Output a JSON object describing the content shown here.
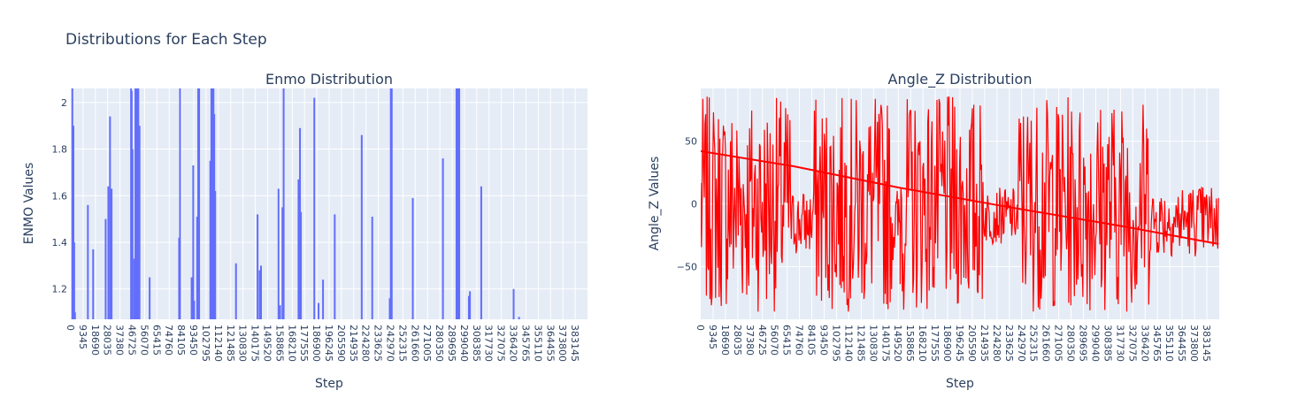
{
  "title": "Distributions for Each Step",
  "colors": {
    "plot_bg": "#e5ecf6",
    "grid": "#ffffff",
    "text": "#2a3f5f",
    "enmo": "#636efa",
    "angle": "#ff0000"
  },
  "chart_data": [
    {
      "type": "bar",
      "title": "Enmo Distribution",
      "xlabel": "Step",
      "ylabel": "ENMO Values",
      "xlim": [
        0,
        392500
      ],
      "ylim": [
        1.07,
        2.06
      ],
      "xticks": [
        "0",
        "9345",
        "18690",
        "28035",
        "37380",
        "46725",
        "56070",
        "65415",
        "74760",
        "84105",
        "93450",
        "102795",
        "112140",
        "121485",
        "130830",
        "140175",
        "149520",
        "158865",
        "168210",
        "177555",
        "186900",
        "196245",
        "205590",
        "214935",
        "224280",
        "233625",
        "242970",
        "252315",
        "261660",
        "271005",
        "280350",
        "289695",
        "299040",
        "308385",
        "317730",
        "327075",
        "336420",
        "345765",
        "355110",
        "364455",
        "373800",
        "383145"
      ],
      "yticks": [
        1.2,
        1.4,
        1.6,
        1.8,
        2
      ],
      "ytick_labels": [
        "1.2",
        "1.4",
        "1.6",
        "1.8",
        "2"
      ],
      "bars": [
        {
          "x": 1200,
          "y": 2.06
        },
        {
          "x": 2000,
          "y": 1.9
        },
        {
          "x": 2600,
          "y": 1.4
        },
        {
          "x": 3200,
          "y": 1.1
        },
        {
          "x": 13000,
          "y": 1.56
        },
        {
          "x": 17000,
          "y": 1.37
        },
        {
          "x": 26500,
          "y": 1.5
        },
        {
          "x": 28500,
          "y": 1.64
        },
        {
          "x": 29800,
          "y": 1.94
        },
        {
          "x": 31000,
          "y": 1.63
        },
        {
          "x": 45800,
          "y": 2.06
        },
        {
          "x": 46300,
          "y": 2.05
        },
        {
          "x": 46900,
          "y": 1.8
        },
        {
          "x": 48200,
          "y": 1.33
        },
        {
          "x": 49100,
          "y": 2.06
        },
        {
          "x": 49800,
          "y": 2.06
        },
        {
          "x": 50500,
          "y": 2.06
        },
        {
          "x": 51300,
          "y": 2.06
        },
        {
          "x": 52200,
          "y": 1.9
        },
        {
          "x": 59900,
          "y": 1.25
        },
        {
          "x": 82300,
          "y": 1.42
        },
        {
          "x": 83000,
          "y": 2.06
        },
        {
          "x": 91800,
          "y": 1.25
        },
        {
          "x": 93000,
          "y": 1.73
        },
        {
          "x": 93700,
          "y": 1.15
        },
        {
          "x": 96000,
          "y": 1.51
        },
        {
          "x": 96800,
          "y": 2.06
        },
        {
          "x": 97500,
          "y": 2.06
        },
        {
          "x": 106000,
          "y": 1.75
        },
        {
          "x": 106800,
          "y": 2.06
        },
        {
          "x": 107600,
          "y": 2.06
        },
        {
          "x": 108400,
          "y": 2.06
        },
        {
          "x": 109000,
          "y": 1.95
        },
        {
          "x": 109700,
          "y": 1.62
        },
        {
          "x": 125500,
          "y": 1.31
        },
        {
          "x": 141900,
          "y": 1.52
        },
        {
          "x": 143500,
          "y": 1.28
        },
        {
          "x": 144500,
          "y": 1.3
        },
        {
          "x": 157800,
          "y": 1.63
        },
        {
          "x": 159000,
          "y": 1.13
        },
        {
          "x": 160800,
          "y": 1.55
        },
        {
          "x": 161700,
          "y": 2.06
        },
        {
          "x": 173000,
          "y": 1.67
        },
        {
          "x": 174100,
          "y": 1.89
        },
        {
          "x": 174800,
          "y": 1.53
        },
        {
          "x": 185000,
          "y": 2.02
        },
        {
          "x": 188200,
          "y": 1.14
        },
        {
          "x": 191600,
          "y": 1.24
        },
        {
          "x": 200500,
          "y": 1.52
        },
        {
          "x": 221000,
          "y": 1.86
        },
        {
          "x": 229000,
          "y": 1.51
        },
        {
          "x": 242300,
          "y": 1.16
        },
        {
          "x": 243100,
          "y": 2.06
        },
        {
          "x": 243800,
          "y": 2.06
        },
        {
          "x": 259800,
          "y": 1.59
        },
        {
          "x": 282700,
          "y": 1.76
        },
        {
          "x": 293000,
          "y": 2.06
        },
        {
          "x": 293700,
          "y": 2.06
        },
        {
          "x": 294400,
          "y": 2.06
        },
        {
          "x": 295100,
          "y": 2.06
        },
        {
          "x": 302400,
          "y": 1.17
        },
        {
          "x": 303200,
          "y": 1.19
        },
        {
          "x": 311800,
          "y": 1.64
        },
        {
          "x": 336400,
          "y": 1.2
        },
        {
          "x": 340500,
          "y": 1.08
        }
      ]
    },
    {
      "type": "line",
      "title": "Angle_Z Distribution",
      "xlabel": "Step",
      "ylabel": "Angle_Z Values",
      "xlim": [
        0,
        392500
      ],
      "ylim": [
        -92,
        92
      ],
      "xticks": [
        "0",
        "9345",
        "18690",
        "28035",
        "37380",
        "46725",
        "56070",
        "65415",
        "74760",
        "84105",
        "93450",
        "102795",
        "112140",
        "121485",
        "130830",
        "140175",
        "149520",
        "158865",
        "168210",
        "177555",
        "186900",
        "196245",
        "205590",
        "214935",
        "224280",
        "233625",
        "242970",
        "252315",
        "261660",
        "271005",
        "280350",
        "289695",
        "299040",
        "308385",
        "317730",
        "327075",
        "336420",
        "345765",
        "355110",
        "364455",
        "373800",
        "383145"
      ],
      "yticks": [
        -50,
        0,
        50
      ],
      "ytick_labels": [
        "−50",
        "0",
        "50"
      ],
      "segments": [
        {
          "x0": 0,
          "x1": 69000,
          "min": -86,
          "max": 86
        },
        {
          "x0": 69000,
          "x1": 85000,
          "min": -42,
          "max": 12
        },
        {
          "x0": 85000,
          "x1": 145000,
          "min": -86,
          "max": 86
        },
        {
          "x0": 145000,
          "x1": 151000,
          "min": -48,
          "max": 15
        },
        {
          "x0": 151000,
          "x1": 214000,
          "min": -86,
          "max": 86
        },
        {
          "x0": 214000,
          "x1": 240000,
          "min": -32,
          "max": 13
        },
        {
          "x0": 240000,
          "x1": 340000,
          "min": -86,
          "max": 86
        },
        {
          "x0": 340000,
          "x1": 392000,
          "min": -42,
          "max": 16
        }
      ],
      "trend_line": [
        [
          0,
          42
        ],
        [
          70000,
          30
        ],
        [
          150000,
          13
        ],
        [
          230000,
          -2
        ],
        [
          320000,
          -18
        ],
        [
          392000,
          -32
        ]
      ]
    }
  ]
}
